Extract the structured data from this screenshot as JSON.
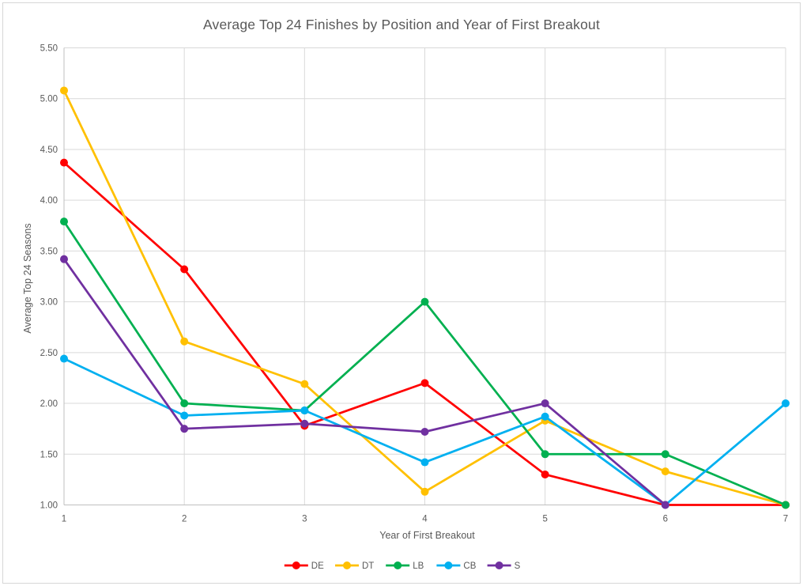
{
  "chart_data": {
    "type": "line",
    "title": "Average Top 24 Finishes by Position and Year of First Breakout",
    "xlabel": "Year of First Breakout",
    "ylabel": "Average Top 24 Seasons",
    "x": [
      1,
      2,
      3,
      4,
      5,
      6,
      7
    ],
    "x_tick_labels": [
      "1",
      "2",
      "3",
      "4",
      "5",
      "6",
      "7"
    ],
    "y_tick_labels": [
      "1.00",
      "1.50",
      "2.00",
      "2.50",
      "3.00",
      "3.50",
      "4.00",
      "4.50",
      "5.00",
      "5.50"
    ],
    "y_tick_values": [
      1.0,
      1.5,
      2.0,
      2.5,
      3.0,
      3.5,
      4.0,
      4.5,
      5.0,
      5.5
    ],
    "xlim": [
      1,
      7
    ],
    "ylim": [
      1.0,
      5.5
    ],
    "grid": true,
    "legend_position": "bottom-center",
    "series": [
      {
        "name": "DE",
        "color": "#FF0000",
        "values": [
          4.37,
          3.32,
          1.78,
          2.2,
          1.3,
          1.0,
          1.0
        ]
      },
      {
        "name": "DT",
        "color": "#FFC000",
        "values": [
          5.08,
          2.61,
          2.19,
          1.13,
          1.83,
          1.33,
          1.0
        ]
      },
      {
        "name": "LB",
        "color": "#00B050",
        "values": [
          3.79,
          2.0,
          1.93,
          3.0,
          1.5,
          1.5,
          1.0
        ]
      },
      {
        "name": "CB",
        "color": "#00B0F0",
        "values": [
          2.44,
          1.88,
          1.93,
          1.42,
          1.87,
          1.0,
          2.0
        ]
      },
      {
        "name": "S",
        "color": "#7030A0",
        "values": [
          3.42,
          1.75,
          1.8,
          1.72,
          2.0,
          1.0,
          null
        ]
      }
    ],
    "colors": {
      "gridline": "#D9D9D9",
      "axis_line": "#BFBFBF",
      "tick_text": "#595959",
      "title_text": "#595959",
      "legend_text": "#595959",
      "background": "#FFFFFF"
    }
  }
}
